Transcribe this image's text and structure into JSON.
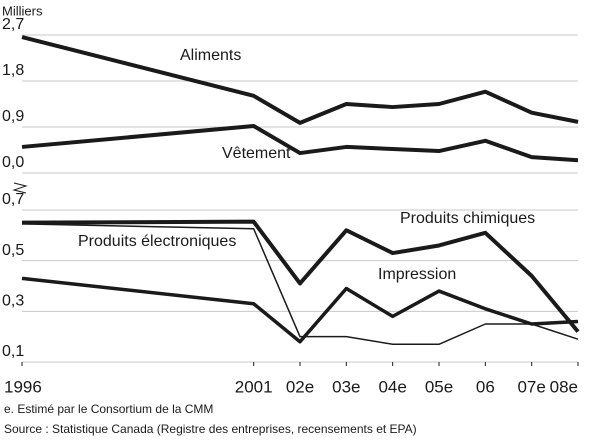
{
  "chart_data": [
    {
      "type": "line",
      "y_label": "Milliers",
      "x": [
        1996,
        2001,
        2002,
        2003,
        2004,
        2005,
        2006,
        2007,
        2008
      ],
      "ylim": [
        0,
        2.7
      ],
      "yticks": [
        {
          "value": 0,
          "label": "0,0"
        },
        {
          "value": 0.9,
          "label": "0,9"
        },
        {
          "value": 1.8,
          "label": "1,8"
        },
        {
          "value": 2.7,
          "label": "2,7"
        }
      ],
      "grid": true,
      "series": [
        {
          "name": "Aliments",
          "color": "#1a1a1a",
          "line_width": 4,
          "values": [
            2.66,
            1.51,
            0.98,
            1.35,
            1.29,
            1.35,
            1.59,
            1.18,
            1.0
          ]
        },
        {
          "name": "Vêtement",
          "color": "#1a1a1a",
          "line_width": 4,
          "values": [
            0.51,
            0.92,
            0.39,
            0.51,
            0.47,
            0.43,
            0.63,
            0.31,
            0.25
          ]
        }
      ]
    },
    {
      "type": "line",
      "x": [
        1996,
        2001,
        2002,
        2003,
        2004,
        2005,
        2006,
        2007,
        2008
      ],
      "xlim": [
        1996,
        2008
      ],
      "xticks": [
        1996,
        2001,
        {
          "value": 2002,
          "label": "02e"
        },
        {
          "value": 2003,
          "label": "03e"
        },
        {
          "value": 2004,
          "label": "04e"
        },
        {
          "value": 2005,
          "label": "05e"
        },
        {
          "value": 2006,
          "label": "06"
        },
        {
          "value": 2007,
          "label": "07e"
        },
        {
          "value": 2008,
          "label": "08e"
        }
      ],
      "ylim": [
        0.1,
        0.7
      ],
      "yticks": [
        {
          "value": 0.1,
          "label": "0,1"
        },
        {
          "value": 0.3,
          "label": "0,3"
        },
        {
          "value": 0.5,
          "label": "0,5"
        },
        {
          "value": 0.7,
          "label": "0,7"
        }
      ],
      "grid": true,
      "series": [
        {
          "name": "Produits chimiques",
          "color": "#1a1a1a",
          "line_width": 4,
          "values": [
            0.65,
            0.654,
            0.41,
            0.62,
            0.53,
            0.56,
            0.61,
            0.44,
            0.22
          ]
        },
        {
          "name": "Produits électroniques",
          "color": "#1a1a1a",
          "line_width": 1.5,
          "values": [
            0.645,
            0.626,
            0.2,
            0.2,
            0.17,
            0.17,
            0.25,
            0.25,
            0.19
          ]
        },
        {
          "name": "Impression",
          "color": "#1a1a1a",
          "line_width": 3.5,
          "values": [
            0.43,
            0.33,
            0.18,
            0.39,
            0.28,
            0.38,
            0.31,
            0.25,
            0.26
          ]
        }
      ]
    }
  ],
  "notes": [
    "e.  Estimé par le Consortium de la CMM",
    "Source : Statistique Canada (Registre des entreprises, recensements et EPA)"
  ]
}
